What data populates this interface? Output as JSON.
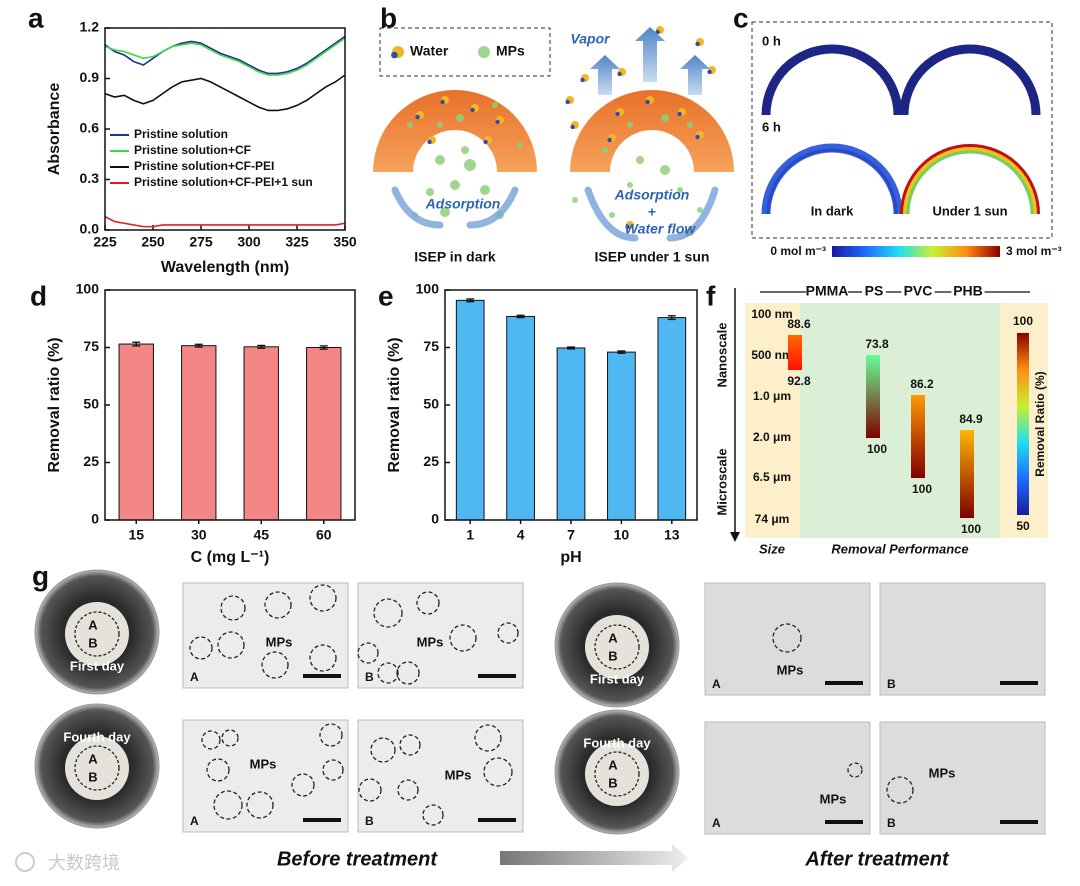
{
  "chart_data": [
    {
      "type": "line",
      "panel": "a",
      "xlabel": "Wavelength (nm)",
      "ylabel": "Absorbance",
      "x": [
        225,
        230,
        235,
        240,
        245,
        250,
        255,
        260,
        265,
        270,
        275,
        280,
        285,
        290,
        295,
        300,
        305,
        310,
        315,
        320,
        325,
        330,
        335,
        340,
        345,
        350
      ],
      "xlim": [
        225,
        350
      ],
      "xticks": [
        225,
        250,
        275,
        300,
        325,
        350
      ],
      "ylim": [
        0,
        1.2
      ],
      "yticks": [
        {
          "value": 0,
          "label": "0.0"
        },
        0.3,
        0.6,
        0.9,
        1.2
      ],
      "series": [
        {
          "name": "Pristine solution",
          "color": "#1f2f9e",
          "values": [
            1.1,
            1.06,
            1.04,
            1.0,
            0.98,
            1.02,
            1.06,
            1.09,
            1.11,
            1.12,
            1.11,
            1.08,
            1.05,
            1.03,
            1.01,
            0.98,
            0.95,
            0.93,
            0.93,
            0.94,
            0.96,
            0.99,
            1.03,
            1.07,
            1.11,
            1.15
          ]
        },
        {
          "name": "Pristine solution+CF",
          "color": "#3ddc3d",
          "values": [
            1.09,
            1.07,
            1.06,
            1.04,
            1.02,
            1.03,
            1.06,
            1.09,
            1.1,
            1.11,
            1.1,
            1.07,
            1.04,
            1.02,
            1.0,
            0.97,
            0.94,
            0.92,
            0.92,
            0.93,
            0.95,
            0.98,
            1.02,
            1.06,
            1.1,
            1.14
          ]
        },
        {
          "name": "Pristine solution+CF-PEI",
          "color": "#111111",
          "values": [
            0.81,
            0.79,
            0.8,
            0.77,
            0.75,
            0.77,
            0.81,
            0.85,
            0.88,
            0.89,
            0.9,
            0.88,
            0.85,
            0.82,
            0.79,
            0.76,
            0.73,
            0.71,
            0.71,
            0.72,
            0.74,
            0.77,
            0.81,
            0.85,
            0.88,
            0.92
          ]
        },
        {
          "name": "Pristine solution+CF-PEI+1 sun",
          "color": "#e02020",
          "values": [
            0.08,
            0.05,
            0.04,
            0.03,
            0.02,
            0.02,
            0.03,
            0.03,
            0.03,
            0.03,
            0.03,
            0.03,
            0.03,
            0.03,
            0.03,
            0.03,
            0.03,
            0.03,
            0.03,
            0.03,
            0.03,
            0.03,
            0.03,
            0.03,
            0.03,
            0.04
          ]
        }
      ]
    },
    {
      "type": "bar",
      "panel": "d",
      "xlabel": "C (mg L⁻¹)",
      "ylabel": "Removal ratio (%)",
      "color": "#f48686",
      "categories": [
        "15",
        "30",
        "45",
        "60"
      ],
      "values": [
        76.5,
        75.8,
        75.3,
        75.0
      ],
      "errors": [
        0.8,
        0.6,
        0.6,
        0.7
      ],
      "ylim": [
        0,
        100
      ],
      "yticks": [
        0,
        25,
        50,
        75,
        100
      ]
    },
    {
      "type": "bar",
      "panel": "e",
      "xlabel": "pH",
      "ylabel": "Removal ratio (%)",
      "color": "#4fb8f2",
      "categories": [
        "1",
        "4",
        "7",
        "10",
        "13"
      ],
      "values": [
        95.5,
        88.5,
        74.8,
        73.0,
        88.0
      ],
      "errors": [
        0.6,
        0.5,
        0.4,
        0.5,
        0.8
      ],
      "ylim": [
        0,
        100
      ],
      "yticks": [
        0,
        25,
        50,
        75,
        100
      ]
    }
  ],
  "panels": {
    "b": {
      "letter": "b",
      "legend": [
        "Water",
        "MPs"
      ],
      "vapor": "Vapor",
      "left_flow": "Adsorption",
      "left_caption": "ISEP in dark",
      "right_flow": [
        "Adsorption",
        "+",
        "Water flow"
      ],
      "right_caption": "ISEP under 1 sun"
    },
    "c": {
      "letter": "c",
      "times": [
        "0 h",
        "6 h"
      ],
      "conditions": [
        "In dark",
        "Under 1 sun"
      ],
      "scale": [
        "0 mol m⁻³",
        "3 mol m⁻³"
      ]
    },
    "f": {
      "letter": "f",
      "sizes": [
        "100 nm",
        "500 nm",
        "1.0 μm",
        "2.0 μm",
        "6.5 μm",
        "74 μm"
      ],
      "scales": [
        "Nanoscale",
        "Microscale"
      ],
      "polymers": [
        {
          "name": "PMMA",
          "top": 88.6,
          "bottom": 92.8
        },
        {
          "name": "PS",
          "top": 73.8,
          "bottom": 100
        },
        {
          "name": "PVC",
          "top": 86.2,
          "bottom": 100
        },
        {
          "name": "PHB",
          "top": 84.9,
          "bottom": 100
        }
      ],
      "colorbar": {
        "min": 50,
        "max": 100,
        "label": "Removal Ratio (%)"
      },
      "size_title": "Size",
      "performance_title": "Removal Performance"
    },
    "g": {
      "letter": "g",
      "dishes": [
        {
          "label": "First day",
          "a": "A",
          "b": "B"
        },
        {
          "label": "Fourth day",
          "a": "A",
          "b": "B"
        },
        {
          "label": "First day",
          "a": "A",
          "b": "B"
        },
        {
          "label": "Fourth day",
          "a": "A",
          "b": "B"
        }
      ],
      "images": [
        {
          "corner": "A",
          "label": "MPs"
        },
        {
          "corner": "B",
          "label": "MPs"
        },
        {
          "corner": "A",
          "label": "MPs"
        },
        {
          "corner": "B",
          "label": "MPs"
        },
        {
          "corner": "A",
          "label": "MPs"
        },
        {
          "corner": "B"
        },
        {
          "corner": "A",
          "label": "MPs"
        },
        {
          "corner": "B",
          "label": "MPs"
        }
      ],
      "before": "Before treatment",
      "after": "After treatment"
    }
  },
  "watermark": "大数跨境"
}
